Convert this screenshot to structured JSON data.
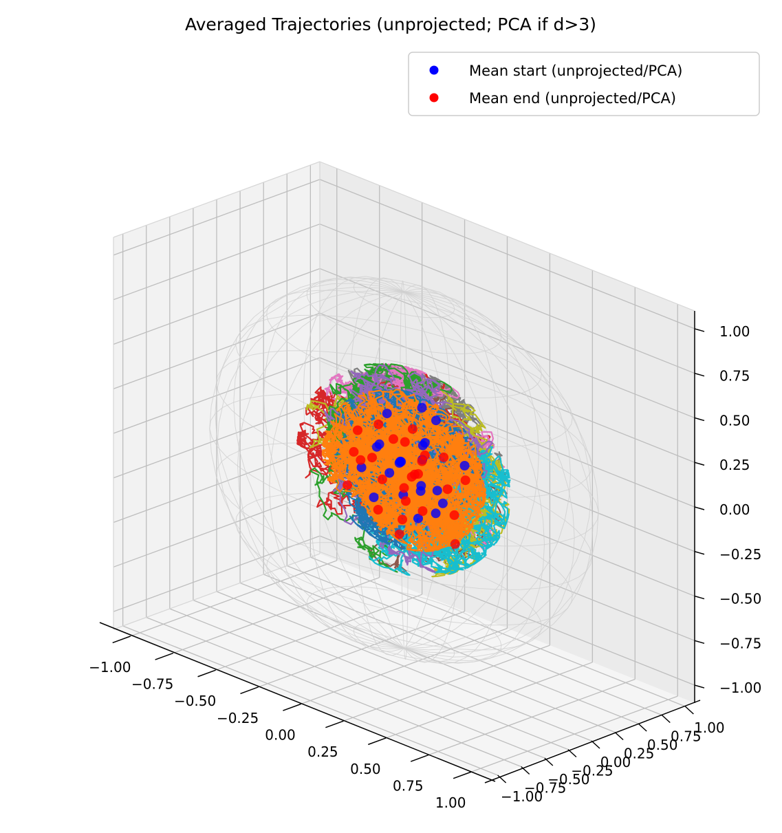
{
  "chart_data": {
    "type": "scatter",
    "title": "Averaged Trajectories (unprojected; PCA if d>3)",
    "projection": "3d",
    "xlim": [
      -1.1,
      1.1
    ],
    "ylim": [
      -1.1,
      1.1
    ],
    "zlim": [
      -1.1,
      1.1
    ],
    "x_ticks": [
      "−1.00",
      "−0.75",
      "−0.50",
      "−0.25",
      "0.00",
      "0.25",
      "0.50",
      "0.75",
      "1.00"
    ],
    "y_ticks": [
      "−1.00",
      "−0.75",
      "−0.50",
      "−0.25",
      "0.00",
      "0.25",
      "0.50",
      "0.75",
      "1.00"
    ],
    "z_ticks": [
      "−1.00",
      "−0.75",
      "−0.50",
      "−0.25",
      "0.00",
      "0.25",
      "0.50",
      "0.75",
      "1.00"
    ],
    "tick_values": [
      -1,
      -0.75,
      -0.5,
      -0.25,
      0,
      0.25,
      0.5,
      0.75,
      1
    ],
    "grid": true,
    "reference_sphere": {
      "radius": 1.0,
      "style": "wireframe",
      "color": "#d0d0d0"
    },
    "legend": {
      "placement": "top-right",
      "entries": [
        {
          "label": "Mean start (unprojected/PCA)",
          "color": "#0000ff"
        },
        {
          "label": "Mean end (unprojected/PCA)",
          "color": "#ff0000"
        }
      ]
    },
    "trajectory_colors": [
      "#1f77b4",
      "#ff7f0e",
      "#2ca02c",
      "#d62728",
      "#9467bd",
      "#8c564b",
      "#e377c2",
      "#7f7f7f",
      "#bcbd22",
      "#17becf"
    ],
    "series": [
      {
        "name": "Mean start (unprojected/PCA)",
        "color": "#0000ff",
        "points": [
          [
            0.05,
            0.1,
            0.35
          ],
          [
            -0.1,
            0.0,
            0.28
          ],
          [
            0.15,
            -0.05,
            0.22
          ],
          [
            0.0,
            0.2,
            0.1
          ],
          [
            -0.05,
            0.05,
            0.02
          ],
          [
            0.1,
            0.0,
            -0.05
          ],
          [
            -0.2,
            0.1,
            0.05
          ],
          [
            0.05,
            -0.1,
            -0.1
          ],
          [
            0.2,
            0.05,
            -0.12
          ],
          [
            -0.15,
            -0.05,
            -0.2
          ],
          [
            0.0,
            0.15,
            -0.3
          ],
          [
            0.25,
            -0.1,
            0.0
          ],
          [
            -0.05,
            -0.2,
            0.15
          ],
          [
            0.12,
            0.12,
            -0.22
          ],
          [
            -0.25,
            0.0,
            -0.08
          ],
          [
            0.3,
            0.1,
            0.12
          ],
          [
            0.0,
            -0.05,
            0.05
          ],
          [
            -0.1,
            0.15,
            -0.02
          ],
          [
            0.18,
            -0.15,
            -0.02
          ],
          [
            0.05,
            0.25,
            0.25
          ],
          [
            -0.02,
            -0.12,
            0.0
          ],
          [
            0.08,
            0.05,
            0.08
          ]
        ]
      },
      {
        "name": "Mean end (unprojected/PCA)",
        "color": "#ff0000",
        "points": [
          [
            -0.3,
            0.05,
            0.1
          ],
          [
            -0.2,
            -0.1,
            0.0
          ],
          [
            0.0,
            0.0,
            -0.1
          ],
          [
            0.2,
            0.1,
            -0.05
          ],
          [
            0.1,
            -0.2,
            -0.2
          ],
          [
            -0.1,
            0.2,
            -0.25
          ],
          [
            0.3,
            0.0,
            -0.3
          ],
          [
            -0.25,
            -0.15,
            -0.15
          ],
          [
            0.05,
            0.1,
            0.05
          ],
          [
            0.15,
            -0.05,
            0.15
          ],
          [
            -0.05,
            -0.25,
            0.1
          ],
          [
            0.25,
            0.2,
            0.0
          ],
          [
            -0.15,
            0.0,
            0.2
          ],
          [
            0.0,
            0.15,
            -0.05
          ],
          [
            0.1,
            -0.1,
            0.02
          ],
          [
            -0.35,
            0.1,
            -0.05
          ],
          [
            0.35,
            -0.1,
            -0.1
          ],
          [
            0.0,
            -0.05,
            -0.35
          ],
          [
            -0.2,
            0.25,
            0.05
          ],
          [
            0.2,
            -0.25,
            0.1
          ],
          [
            0.05,
            0.0,
            0.25
          ],
          [
            -0.1,
            -0.05,
            -0.08
          ],
          [
            0.15,
            0.15,
            0.1
          ],
          [
            -0.05,
            0.1,
            0.12
          ],
          [
            0.12,
            -0.02,
            -0.18
          ],
          [
            -0.18,
            0.05,
            -0.3
          ]
        ]
      }
    ]
  }
}
